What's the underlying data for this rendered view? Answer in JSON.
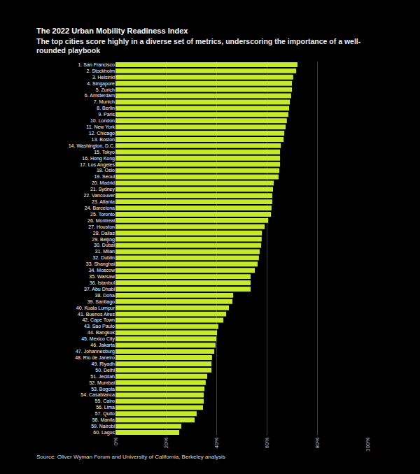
{
  "chart_data": {
    "type": "bar",
    "title": "The 2022 Urban Mobility Readiness Index",
    "subtitle": "The top cities score highly in a diverse set of metrics, underscoring the importance of a well-rounded playbook",
    "source": "Source: Oliver Wyman Forum and University of California, Berkeley analysis",
    "orientation": "horizontal",
    "categories": [
      "1. San Francisco",
      "2. Stockholm",
      "3. Helsinki",
      "4. Singapore",
      "5. Zurich",
      "6. Amsterdam",
      "7. Munich",
      "8. Berlin",
      "9. Paris",
      "10. London",
      "11. New York",
      "12. Chicago",
      "13. Boston",
      "14. Washington, D.C.",
      "15. Tokyo",
      "16. Hong Kong",
      "17. Los Angeles",
      "18. Oslo",
      "19. Seoul",
      "20. Madrid",
      "21. Sydney",
      "22. Vancouver",
      "23. Atlanta",
      "24. Barcelona",
      "25. Toronto",
      "26. Montreal",
      "27. Houston",
      "28. Dallas",
      "29. Beijing",
      "30. Dubai",
      "31. Milan",
      "32. Dublin",
      "33. Shanghai",
      "34. Moscow",
      "35. Warsaw",
      "36. Istanbul",
      "37. Abu Dhabi",
      "38. Doha",
      "39. Santiago",
      "40. Kuala Lumpur",
      "41. Buenos Aires",
      "42. Cape Town",
      "43. Sao Paulo",
      "44. Bangkok",
      "45. Mexico City",
      "46. Jakarta",
      "47. Johannesburg",
      "48. Rio de Janeiro",
      "49. Riyadh",
      "50. Delhi",
      "51. Jeddah",
      "52. Mumbai",
      "53. Bogota",
      "54. Casablanca",
      "55. Cairo",
      "56. Lima",
      "57. Quito",
      "58. Manila",
      "59. Nairobi",
      "60. Lagos"
    ],
    "values": [
      72.2,
      71.7,
      70.5,
      70.0,
      70.0,
      69.7,
      69.2,
      68.9,
      68.6,
      68.0,
      67.5,
      67.0,
      66.7,
      65.6,
      65.3,
      65.3,
      65.3,
      65.0,
      64.7,
      62.8,
      62.5,
      62.2,
      62.2,
      61.9,
      61.7,
      60.6,
      59.2,
      58.1,
      58.0,
      57.8,
      57.2,
      56.9,
      56.4,
      55.3,
      53.6,
      53.6,
      53.6,
      46.7,
      46.4,
      45.0,
      43.9,
      42.8,
      40.8,
      40.3,
      40.0,
      39.7,
      39.2,
      38.3,
      38.1,
      38.1,
      36.4,
      35.8,
      35.3,
      35.0,
      35.0,
      34.7,
      32.2,
      31.4,
      26.1,
      25.3
    ],
    "color": "#c6ea2a",
    "xlim": [
      0,
      100
    ],
    "xticks": [
      {
        "value": 0,
        "label": "0%"
      },
      {
        "value": 20,
        "label": "20%"
      },
      {
        "value": 40,
        "label": "40%"
      },
      {
        "value": 60,
        "label": "60%"
      },
      {
        "value": 80,
        "label": "80%"
      },
      {
        "value": 100,
        "label": "100%"
      }
    ],
    "grid": true
  }
}
